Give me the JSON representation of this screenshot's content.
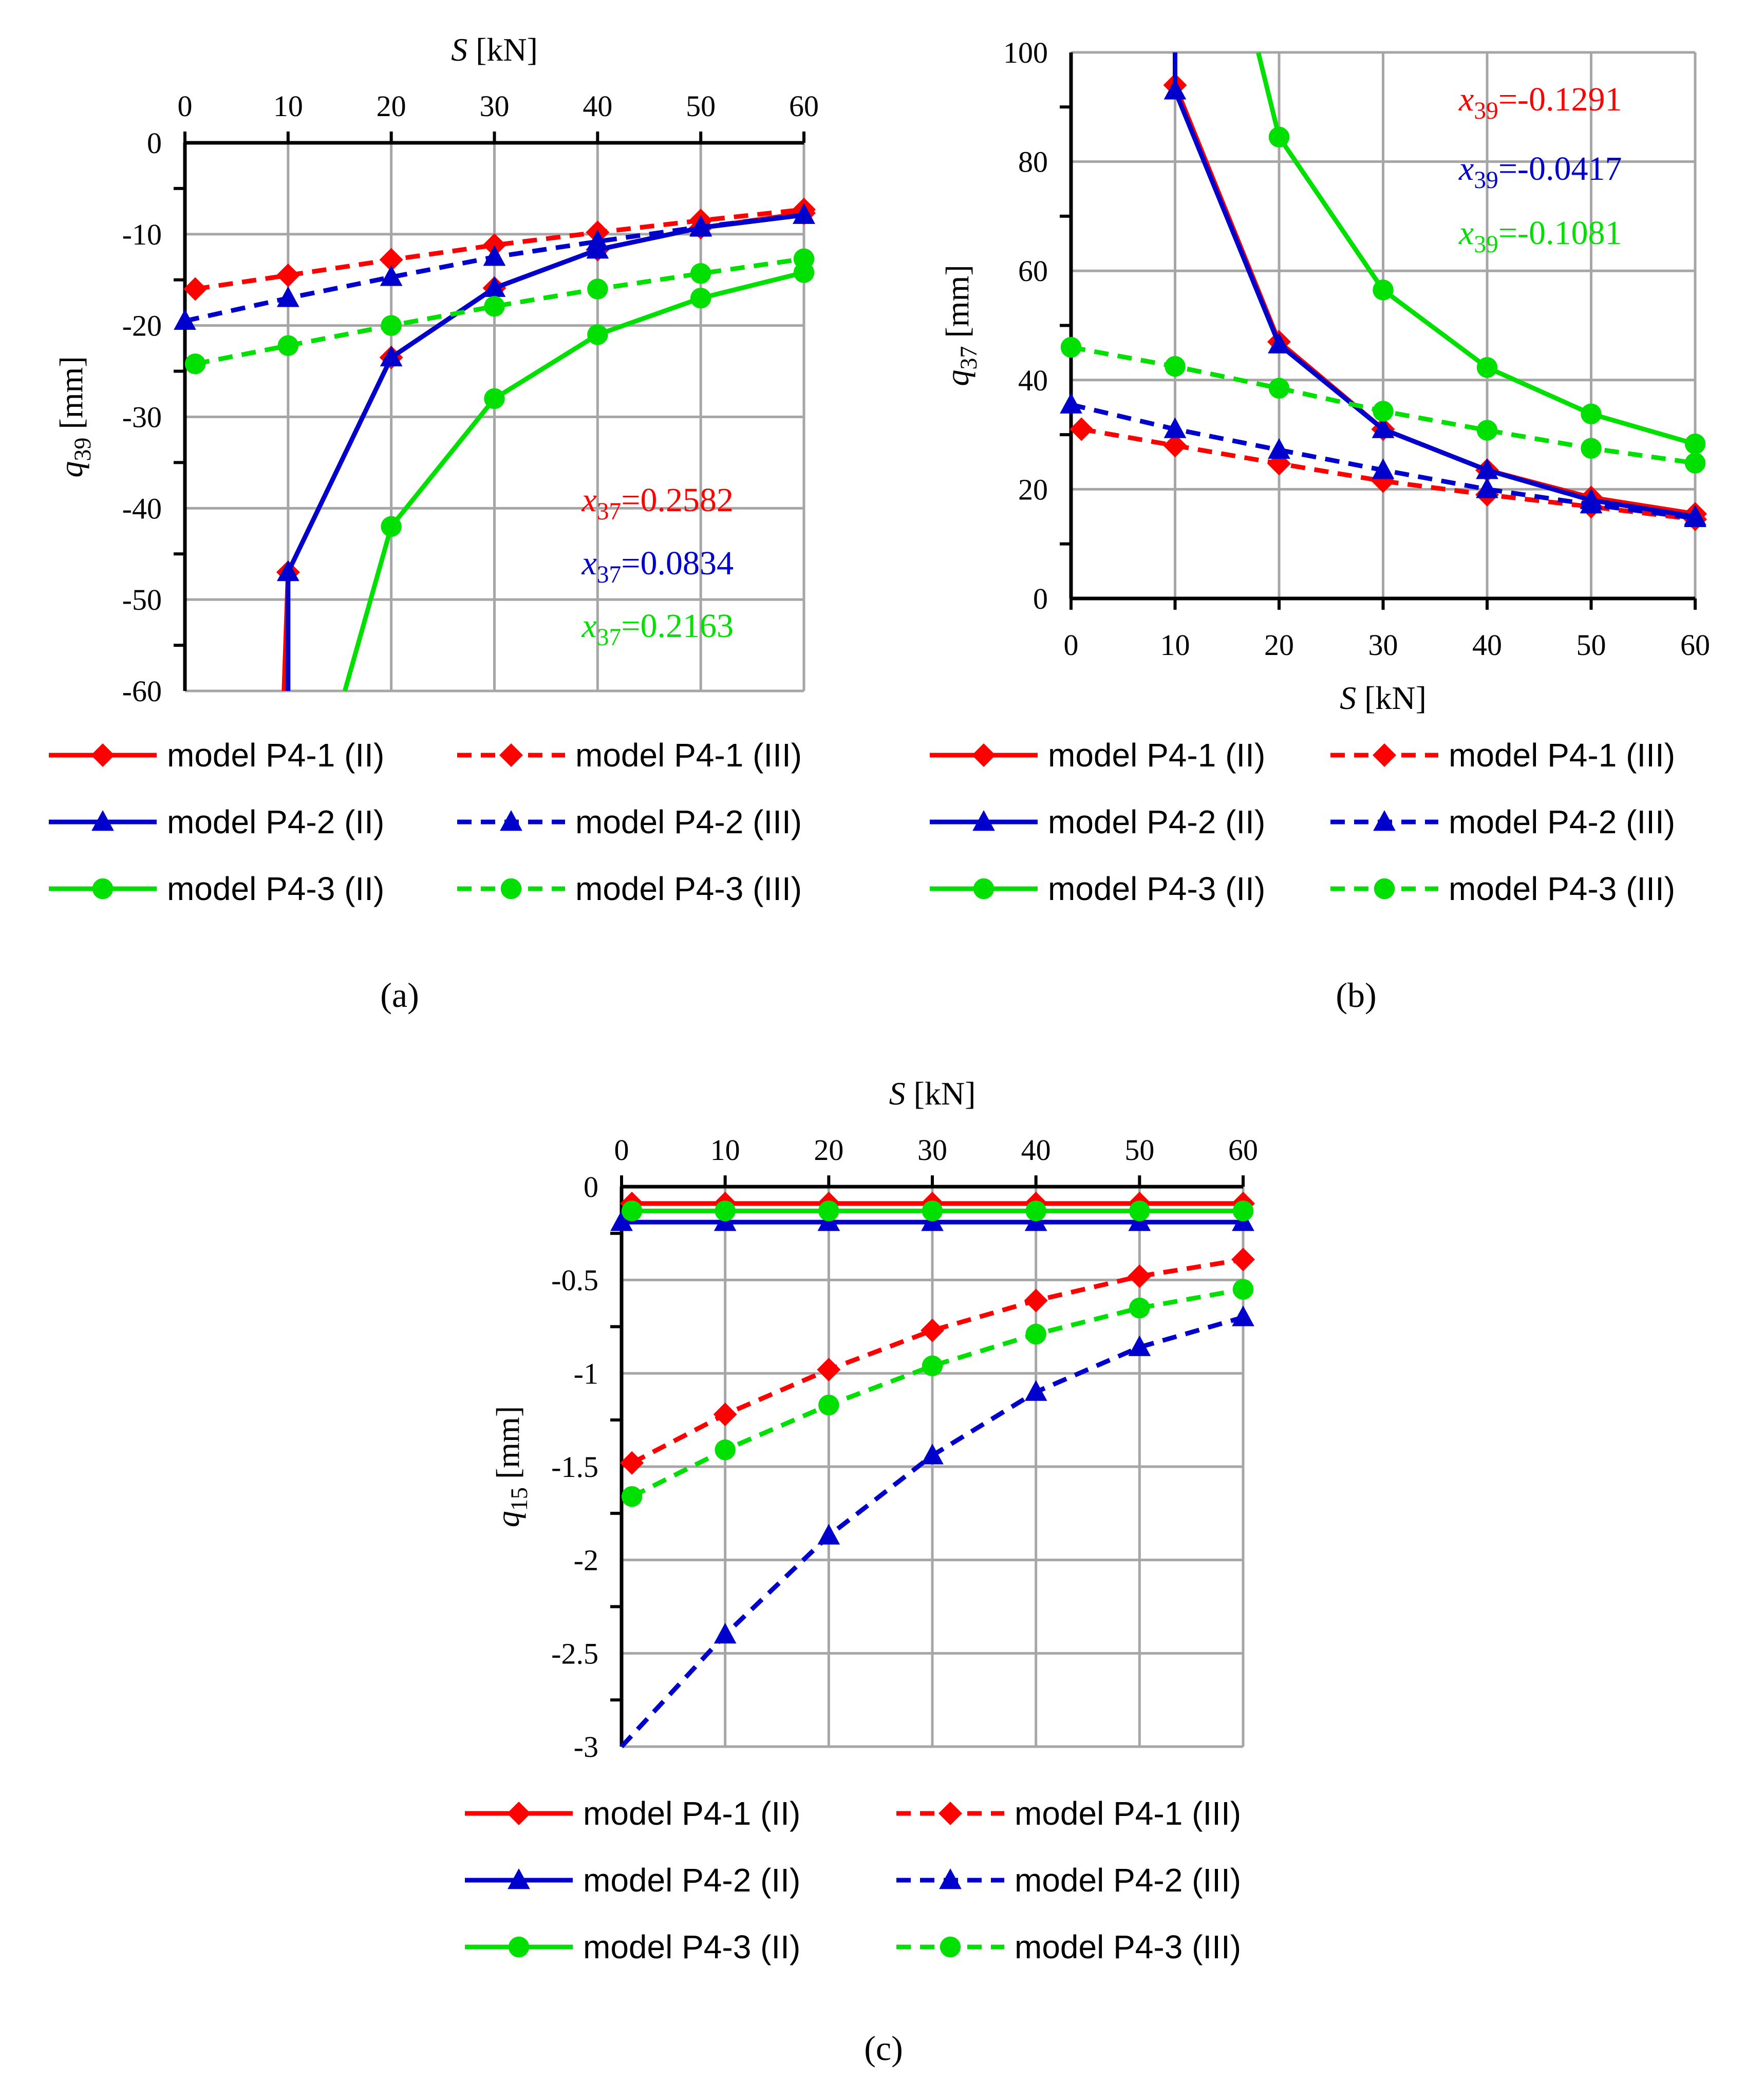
{
  "colors": {
    "red": "#ff0000",
    "blue": "#0000cc",
    "green": "#00e000",
    "grid": "#a6a6a6",
    "axis": "#000000"
  },
  "captions": {
    "a": "(a)",
    "b": "(b)",
    "c": "(c)"
  },
  "chart_data": [
    {
      "id": "a",
      "type": "line",
      "xlabel": {
        "italic": "S",
        "rest": " [kN]"
      },
      "ylabel": {
        "italic": "q",
        "sub": "39",
        "rest": " [mm]"
      },
      "xlim": [
        0,
        60
      ],
      "ylim": [
        -60,
        0
      ],
      "xticks": [
        "0",
        "10",
        "20",
        "30",
        "40",
        "50",
        "60"
      ],
      "yticks": [
        "0",
        "-10",
        "-20",
        "-30",
        "-40",
        "-50",
        "-60"
      ],
      "annotations": [
        {
          "italic": "x",
          "sub": "37",
          "rest": "=0.2582",
          "color": "red"
        },
        {
          "italic": "x",
          "sub": "37",
          "rest": "=0.0834",
          "color": "blue"
        },
        {
          "italic": "x",
          "sub": "37",
          "rest": "=0.2163",
          "color": "green"
        }
      ],
      "series": [
        {
          "name": "model P4-1 (II)",
          "color": "red",
          "dash": false,
          "marker": "diamond",
          "x": [
            9.6,
            10,
            20,
            30,
            40,
            50,
            60
          ],
          "y": [
            -60,
            -47,
            -23.5,
            -15.9,
            -11.7,
            -9.3,
            -7.7
          ]
        },
        {
          "name": "model P4-1 (III)",
          "color": "red",
          "dash": true,
          "marker": "diamond",
          "x": [
            1,
            10,
            20,
            30,
            40,
            50,
            60
          ],
          "y": [
            -16,
            -14.5,
            -12.8,
            -11.2,
            -9.8,
            -8.5,
            -7.3
          ]
        },
        {
          "name": "model P4-2 (II)",
          "color": "blue",
          "dash": false,
          "marker": "triangle",
          "x": [
            10,
            10,
            20,
            30,
            40,
            50,
            60
          ],
          "y": [
            -60,
            -47,
            -23.5,
            -15.9,
            -11.7,
            -9.3,
            -7.9
          ]
        },
        {
          "name": "model P4-2 (III)",
          "color": "blue",
          "dash": true,
          "marker": "triangle",
          "x": [
            0,
            10,
            20,
            30,
            40,
            50,
            60
          ],
          "y": [
            -19.5,
            -17,
            -14.7,
            -12.5,
            -10.8,
            -9.2,
            -7.9
          ]
        },
        {
          "name": "model P4-3 (II)",
          "color": "green",
          "dash": false,
          "marker": "circle",
          "x": [
            15.5,
            20,
            30,
            40,
            50,
            60
          ],
          "y": [
            -60,
            -42,
            -28,
            -21,
            -17,
            -14.2
          ]
        },
        {
          "name": "model P4-3 (III)",
          "color": "green",
          "dash": true,
          "marker": "circle",
          "x": [
            1,
            10,
            20,
            30,
            40,
            50,
            60
          ],
          "y": [
            -24.2,
            -22.2,
            -20,
            -17.9,
            -16,
            -14.3,
            -12.7
          ]
        }
      ]
    },
    {
      "id": "b",
      "type": "line",
      "xlabel": {
        "italic": "S",
        "rest": " [kN]"
      },
      "ylabel": {
        "italic": "q",
        "sub": "37",
        "rest": " [mm]"
      },
      "xlim": [
        0,
        60
      ],
      "ylim": [
        0,
        100
      ],
      "xticks": [
        "0",
        "10",
        "20",
        "30",
        "40",
        "50",
        "60"
      ],
      "yticks": [
        "100",
        "80",
        "60",
        "40",
        "20",
        "0"
      ],
      "annotations": [
        {
          "italic": "x",
          "sub": "39",
          "rest": "=-0.1291",
          "color": "red"
        },
        {
          "italic": "x",
          "sub": "39",
          "rest": "=-0.0417",
          "color": "blue"
        },
        {
          "italic": "x",
          "sub": "39",
          "rest": "=-0.1081",
          "color": "green"
        }
      ],
      "series": [
        {
          "name": "model P4-1 (II)",
          "color": "red",
          "dash": false,
          "marker": "diamond",
          "x": [
            10,
            10,
            20,
            30,
            40,
            50,
            60
          ],
          "y": [
            100,
            94,
            47,
            31,
            23.5,
            18.5,
            15.5
          ]
        },
        {
          "name": "model P4-1 (III)",
          "color": "red",
          "dash": true,
          "marker": "diamond",
          "x": [
            1,
            10,
            20,
            30,
            40,
            50,
            60
          ],
          "y": [
            31,
            28,
            24.7,
            21.5,
            19,
            16.8,
            14.5
          ]
        },
        {
          "name": "model P4-2 (II)",
          "color": "blue",
          "dash": false,
          "marker": "triangle",
          "x": [
            10,
            10,
            20,
            30,
            40,
            50,
            60
          ],
          "y": [
            100,
            93,
            46.5,
            31,
            23.5,
            18,
            15
          ]
        },
        {
          "name": "model P4-2 (III)",
          "color": "blue",
          "dash": true,
          "marker": "triangle",
          "x": [
            0,
            10,
            20,
            30,
            40,
            50,
            60
          ],
          "y": [
            35.5,
            31,
            27.2,
            23.5,
            20,
            17.2,
            14.7
          ]
        },
        {
          "name": "model P4-3 (II)",
          "color": "green",
          "dash": false,
          "marker": "circle",
          "x": [
            18,
            20,
            30,
            40,
            50,
            60
          ],
          "y": [
            100,
            84.5,
            56.5,
            42.3,
            33.8,
            28.3
          ]
        },
        {
          "name": "model P4-3 (III)",
          "color": "green",
          "dash": true,
          "marker": "circle",
          "x": [
            0,
            10,
            20,
            30,
            40,
            50,
            60
          ],
          "y": [
            46,
            42.5,
            38.5,
            34.3,
            30.8,
            27.5,
            24.8
          ]
        }
      ]
    },
    {
      "id": "c",
      "type": "line",
      "xlabel": {
        "italic": "S",
        "rest": " [kN]"
      },
      "ylabel": {
        "italic": "q",
        "sub": "15",
        "rest": " [mm]"
      },
      "xlim": [
        0,
        60
      ],
      "ylim": [
        -3,
        0
      ],
      "xticks": [
        "0",
        "10",
        "20",
        "30",
        "40",
        "50",
        "60"
      ],
      "yticks": [
        "0",
        "-0.5",
        "-1",
        "-1.5",
        "-2",
        "-2.5",
        "-3"
      ],
      "annotations": [],
      "series": [
        {
          "name": "model P4-1 (II)",
          "color": "red",
          "dash": false,
          "marker": "diamond",
          "x": [
            1,
            10,
            20,
            30,
            40,
            50,
            60
          ],
          "y": [
            -0.09,
            -0.09,
            -0.09,
            -0.09,
            -0.09,
            -0.09,
            -0.09
          ]
        },
        {
          "name": "model P4-1 (III)",
          "color": "red",
          "dash": true,
          "marker": "diamond",
          "x": [
            1,
            10,
            20,
            30,
            40,
            50,
            60
          ],
          "y": [
            -1.48,
            -1.22,
            -0.98,
            -0.77,
            -0.61,
            -0.48,
            -0.39
          ]
        },
        {
          "name": "model P4-2 (II)",
          "color": "blue",
          "dash": false,
          "marker": "triangle",
          "x": [
            0,
            10,
            20,
            30,
            40,
            50,
            60
          ],
          "y": [
            -0.19,
            -0.19,
            -0.19,
            -0.19,
            -0.19,
            -0.19,
            -0.19
          ]
        },
        {
          "name": "model P4-2 (III)",
          "color": "blue",
          "dash": true,
          "marker": "triangle",
          "x": [
            0,
            10,
            20,
            30,
            40,
            50,
            60
          ],
          "y": [
            -3,
            -2.4,
            -1.87,
            -1.44,
            -1.1,
            -0.86,
            -0.7
          ]
        },
        {
          "name": "model P4-3 (II)",
          "color": "green",
          "dash": false,
          "marker": "circle",
          "x": [
            1,
            10,
            20,
            30,
            40,
            50,
            60
          ],
          "y": [
            -0.13,
            -0.13,
            -0.13,
            -0.13,
            -0.13,
            -0.13,
            -0.13
          ]
        },
        {
          "name": "model P4-3 (III)",
          "color": "green",
          "dash": true,
          "marker": "circle",
          "x": [
            1,
            10,
            20,
            30,
            40,
            50,
            60
          ],
          "y": [
            -1.66,
            -1.41,
            -1.17,
            -0.96,
            -0.79,
            -0.65,
            -0.55
          ]
        }
      ]
    }
  ]
}
